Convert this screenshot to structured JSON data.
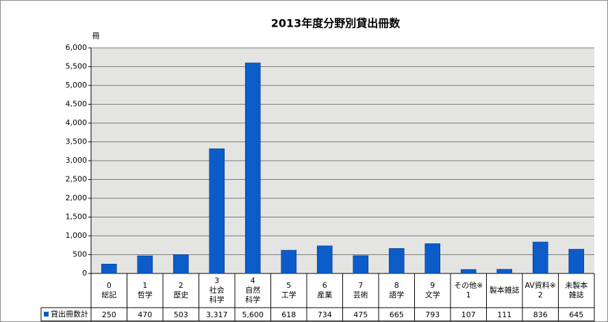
{
  "chart_data": {
    "type": "bar",
    "title": "2013年度分野別貸出冊数",
    "y_unit": "冊",
    "categories": [
      "0\n総記",
      "1\n哲学",
      "2\n歴史",
      "3\n社会\n科学",
      "4\n自然\n科学",
      "5\n工学",
      "6\n産業",
      "7\n芸術",
      "8\n語学",
      "9\n文学",
      "その他※\n1",
      "製本雑誌",
      "AV資料※\n2",
      "未製本\n雑誌"
    ],
    "series": [
      {
        "name": "貸出冊数計",
        "color": "#0b5cc8",
        "values": [
          250,
          470,
          503,
          3317,
          5600,
          618,
          734,
          475,
          665,
          793,
          107,
          111,
          836,
          645
        ],
        "value_labels": [
          "250",
          "470",
          "503",
          "3,317",
          "5,600",
          "618",
          "734",
          "475",
          "665",
          "793",
          "107",
          "111",
          "836",
          "645"
        ]
      }
    ],
    "ylim": [
      0,
      6000
    ],
    "yticks": [
      0,
      500,
      {
        "value": 1000,
        "label": "1,000"
      },
      {
        "value": 1500,
        "label": "1,500"
      },
      {
        "value": 2000,
        "label": "2,000"
      },
      {
        "value": 2500,
        "label": "2,500"
      },
      {
        "value": 3000,
        "label": "3,000"
      },
      {
        "value": 3500,
        "label": "3,500"
      },
      {
        "value": 4000,
        "label": "4,000"
      },
      {
        "value": 4500,
        "label": "4,500"
      },
      {
        "value": 5000,
        "label": "5,000"
      },
      {
        "value": 5500,
        "label": "5,500"
      },
      {
        "value": 6000,
        "label": "6,000"
      }
    ],
    "grid": true
  }
}
